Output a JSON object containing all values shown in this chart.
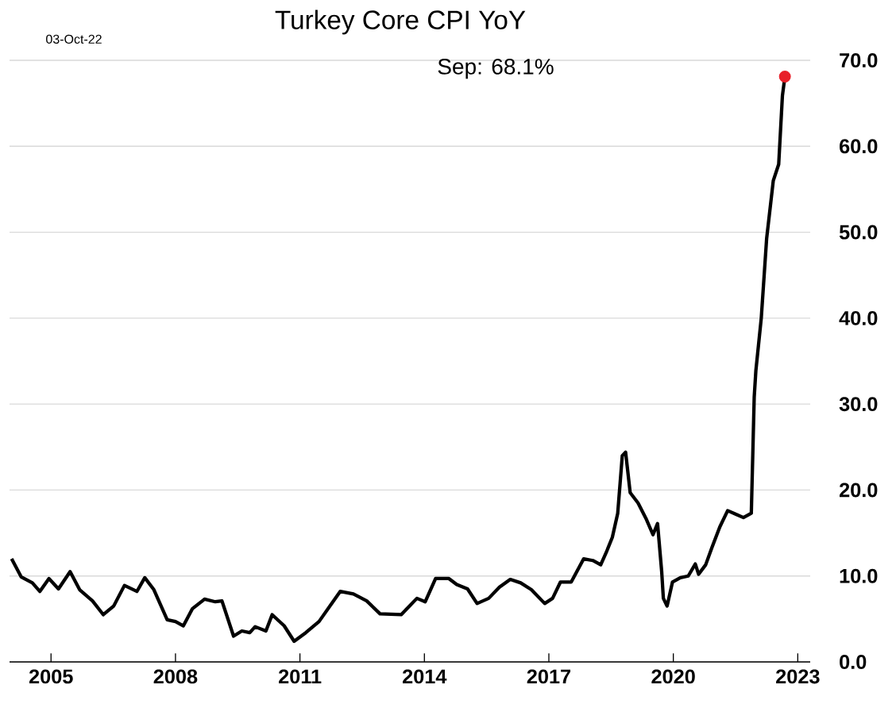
{
  "chart_data": {
    "type": "line",
    "title": "Turkey Core CPI YoY",
    "annotations": [
      "03-Oct-22",
      "Sep:   68.1%"
    ],
    "series": [
      {
        "color": "#000000",
        "marker": "none",
        "x": [
          2004.05,
          2004.28,
          2004.55,
          2004.73,
          2004.95,
          2005.18,
          2005.46,
          2005.69,
          2006.0,
          2006.26,
          2006.51,
          2006.77,
          2007.07,
          2007.26,
          2007.48,
          2007.8,
          2008.0,
          2008.19,
          2008.41,
          2008.7,
          2008.96,
          2009.12,
          2009.4,
          2009.6,
          2009.79,
          2009.92,
          2010.18,
          2010.33,
          2010.62,
          2010.86,
          2011.14,
          2011.46,
          2011.97,
          2012.29,
          2012.61,
          2012.93,
          2013.44,
          2013.82,
          2014.02,
          2014.27,
          2014.59,
          2014.78,
          2015.04,
          2015.27,
          2015.55,
          2015.81,
          2016.07,
          2016.32,
          2016.58,
          2016.9,
          2017.09,
          2017.28,
          2017.54,
          2017.84,
          2018.06,
          2018.25,
          2018.38,
          2018.53,
          2018.66,
          2018.77,
          2018.85,
          2018.96,
          2019.15,
          2019.34,
          2019.51,
          2019.62,
          2019.72,
          2019.76,
          2019.85,
          2019.98,
          2020.17,
          2020.36,
          2020.53,
          2020.61,
          2020.78,
          2020.93,
          2021.12,
          2021.31,
          2021.5,
          2021.69,
          2021.88,
          2021.95,
          2021.99,
          2022.12,
          2022.25,
          2022.41,
          2022.54,
          2022.63,
          2022.69
        ],
        "values": [
          12.0,
          9.9,
          9.2,
          8.2,
          9.7,
          8.5,
          10.5,
          8.4,
          7.1,
          5.5,
          6.5,
          8.9,
          8.2,
          9.8,
          8.4,
          4.9,
          4.7,
          4.2,
          6.2,
          7.3,
          7.0,
          7.1,
          3.0,
          3.6,
          3.4,
          4.1,
          3.6,
          5.5,
          4.2,
          2.4,
          3.4,
          4.7,
          8.2,
          7.9,
          7.1,
          5.6,
          5.5,
          7.4,
          7.0,
          9.7,
          9.7,
          9.0,
          8.5,
          6.8,
          7.4,
          8.7,
          9.6,
          9.2,
          8.4,
          6.8,
          7.4,
          9.3,
          9.3,
          12.0,
          11.8,
          11.3,
          12.7,
          14.5,
          17.3,
          24.0,
          24.4,
          19.7,
          18.5,
          16.7,
          14.8,
          16.1,
          10.5,
          7.4,
          6.5,
          9.3,
          9.8,
          10.0,
          11.4,
          10.2,
          11.3,
          13.3,
          15.7,
          17.6,
          17.2,
          16.8,
          17.3,
          30.8,
          33.9,
          40.0,
          49.3,
          56.0,
          57.9,
          65.9,
          68.1
        ]
      },
      {
        "type": "scatter",
        "color": "#e8202a",
        "marker": "circle",
        "x": [
          2022.69
        ],
        "values": [
          68.1
        ]
      }
    ],
    "xlim": [
      2004.0,
      2023.3
    ],
    "xticks": [
      2005,
      2008,
      2011,
      2014,
      2017,
      2020,
      2023
    ],
    "ylim": [
      0,
      70
    ],
    "yticks": [
      {
        "value": 0,
        "label": "0.0"
      },
      {
        "value": 10,
        "label": "10.0"
      },
      {
        "value": 20,
        "label": "20.0"
      },
      {
        "value": 30,
        "label": "30.0"
      },
      {
        "value": 40,
        "label": "40.0"
      },
      {
        "value": 50,
        "label": "50.0"
      },
      {
        "value": 60,
        "label": "60.0"
      },
      {
        "value": 70,
        "label": "70.0"
      }
    ],
    "grid": "y"
  }
}
